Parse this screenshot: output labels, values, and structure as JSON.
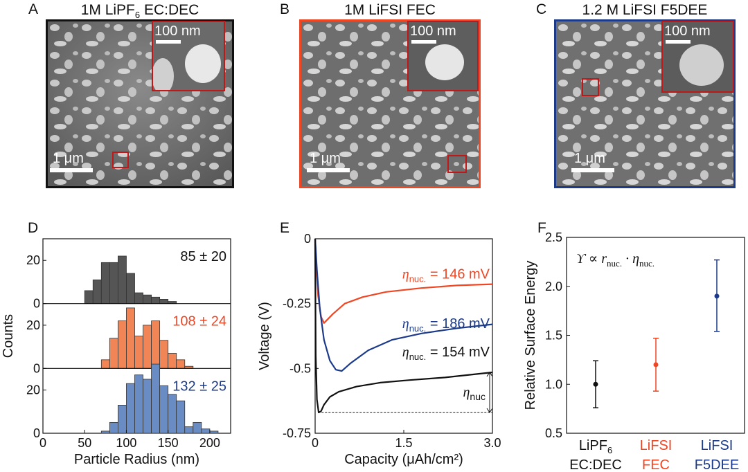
{
  "panels": {
    "A": {
      "letter": "A",
      "title": "1M LiPF",
      "title_sub": "6",
      "title_rest": " EC:DEC",
      "scale": "1 μm",
      "inset": "100 nm"
    },
    "B": {
      "letter": "B",
      "title": "1M LiFSI FEC",
      "scale": "1 μm",
      "inset": "100 nm"
    },
    "C": {
      "letter": "C",
      "title": "1.2 M LiFSI F5DEE",
      "scale": "1 μm",
      "inset": "100 nm"
    },
    "D": {
      "letter": "D"
    },
    "E": {
      "letter": "E"
    },
    "F": {
      "letter": "F"
    }
  },
  "colors": {
    "black": "#111111",
    "orange": "#ef4623",
    "blue": "#1b3a8a",
    "gray_bar": "#555555",
    "orange_bar": "#f28555",
    "blue_bar": "#6a8cc4",
    "inset_box": "#c01818"
  },
  "chart_data": [
    {
      "type": "bar",
      "panel": "D",
      "xlabel": "Particle Radius (nm)",
      "ylabel": "Counts",
      "xlim": [
        0,
        225
      ],
      "xticks": [
        0,
        50,
        100,
        150,
        200
      ],
      "ylim": [
        0,
        30
      ],
      "yticks": [
        0,
        20
      ],
      "bin_width": 10,
      "series": [
        {
          "name": "1M LiPF6 EC:DEC",
          "annotation": "85 ± 20",
          "color": "black",
          "bin_left": [
            50,
            60,
            70,
            80,
            90,
            100,
            110,
            120,
            130,
            140,
            150
          ],
          "values": [
            6,
            11,
            19,
            19,
            22,
            14,
            5,
            4,
            3,
            2,
            1
          ]
        },
        {
          "name": "1M LiFSI FEC",
          "annotation": "108 ± 24",
          "color": "orange",
          "bin_left": [
            70,
            80,
            90,
            100,
            110,
            120,
            130,
            140,
            150,
            160,
            170
          ],
          "values": [
            4,
            14,
            22,
            28,
            15,
            20,
            22,
            13,
            7,
            4,
            1
          ]
        },
        {
          "name": "1.2 M LiFSI F5DEE",
          "annotation": "132 ± 25",
          "color": "blue",
          "bin_left": [
            70,
            80,
            90,
            100,
            110,
            120,
            130,
            140,
            150,
            160,
            170,
            180,
            190,
            200
          ],
          "values": [
            1,
            5,
            13,
            23,
            27,
            25,
            32,
            22,
            18,
            15,
            3,
            5,
            2,
            1
          ]
        }
      ]
    },
    {
      "type": "line",
      "panel": "E",
      "xlabel": "Capacity (μAh/cm²)",
      "ylabel": "Voltage (V)",
      "xlim": [
        0,
        3.0
      ],
      "xticks": [
        "0",
        "1.5",
        "3.0"
      ],
      "ylim": [
        -0.75,
        0
      ],
      "yticks": [
        "0",
        "-0.25",
        "-0.5",
        "-0.75"
      ],
      "series": [
        {
          "name": "LiFSI FEC",
          "color": "orange",
          "label": "= 146 mV",
          "x": [
            0,
            0.02,
            0.05,
            0.1,
            0.15,
            0.3,
            0.5,
            0.8,
            1.2,
            1.8,
            2.4,
            3.0
          ],
          "y": [
            0,
            -0.1,
            -0.22,
            -0.3,
            -0.325,
            -0.29,
            -0.25,
            -0.225,
            -0.205,
            -0.19,
            -0.18,
            -0.175
          ]
        },
        {
          "name": "LiFSI F5DEE",
          "color": "blue",
          "label": "= 186 mV",
          "x": [
            0,
            0.03,
            0.08,
            0.15,
            0.25,
            0.35,
            0.45,
            0.6,
            0.9,
            1.3,
            1.8,
            2.4,
            3.0
          ],
          "y": [
            0,
            -0.12,
            -0.27,
            -0.39,
            -0.47,
            -0.505,
            -0.51,
            -0.48,
            -0.43,
            -0.39,
            -0.365,
            -0.345,
            -0.33
          ]
        },
        {
          "name": "LiPF6 EC:DEC",
          "color": "black",
          "label": "= 154 mV",
          "x": [
            0,
            0.01,
            0.03,
            0.06,
            0.1,
            0.15,
            0.25,
            0.4,
            0.7,
            1.1,
            1.6,
            2.2,
            3.0
          ],
          "y": [
            0,
            -0.45,
            -0.62,
            -0.67,
            -0.665,
            -0.64,
            -0.61,
            -0.59,
            -0.57,
            -0.555,
            -0.545,
            -0.535,
            -0.515
          ]
        }
      ],
      "annotation": "ηnuc",
      "label_subscript": "nuc.",
      "label_symbol": "η"
    },
    {
      "type": "scatter",
      "panel": "F",
      "ylabel": "Relative Surface Energy",
      "ylim": [
        0.5,
        2.5
      ],
      "yticks": [
        "0.5",
        "1.0",
        "1.5",
        "2.0",
        "2.5"
      ],
      "equation": "ϒ ∝ r",
      "equation_sub1": "nuc.",
      "equation_mid": " · η",
      "equation_sub2": "nuc.",
      "categories": [
        {
          "line1": "LiPF",
          "line1_sub": "6",
          "line2": "EC:DEC",
          "color": "black"
        },
        {
          "line1": "LiFSI",
          "line2": "FEC",
          "color": "orange"
        },
        {
          "line1": "LiFSI",
          "line2": "F5DEE",
          "color": "blue"
        }
      ],
      "values": [
        1.0,
        1.2,
        1.9
      ],
      "err_low": [
        0.76,
        0.93,
        1.54
      ],
      "err_high": [
        1.24,
        1.47,
        2.27
      ]
    }
  ]
}
